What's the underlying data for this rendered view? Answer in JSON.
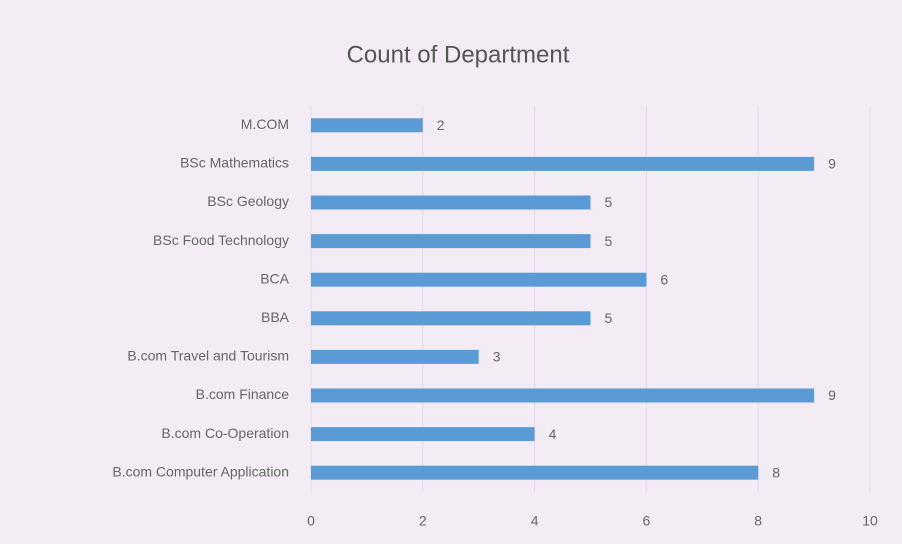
{
  "chart_data": {
    "type": "barh",
    "title": "Count of Department",
    "categories": [
      "M.COM",
      "BSc Mathematics",
      "BSc Geology",
      "BSc Food Technology",
      "BCA",
      "BBA",
      "B.com Travel and Tourism",
      "B.com Finance",
      "B.com Co-Operation",
      "B.com Computer Application"
    ],
    "values": [
      2,
      9,
      5,
      5,
      6,
      5,
      3,
      9,
      4,
      8
    ],
    "color": "#5b9bd5",
    "xlim": [
      0,
      10
    ],
    "xticks": [
      0,
      2,
      4,
      6,
      8,
      10
    ],
    "grid": true
  }
}
